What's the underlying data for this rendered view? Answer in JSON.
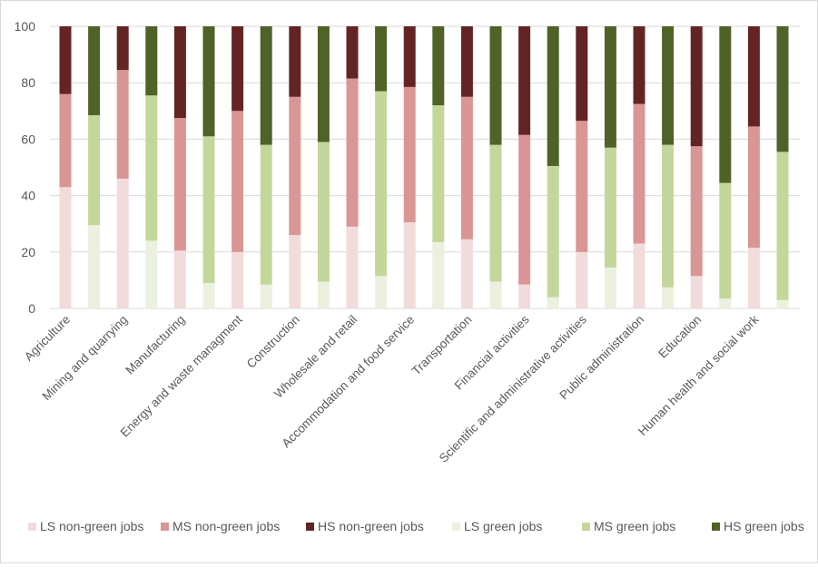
{
  "chart_data": {
    "type": "bar",
    "stacked": true,
    "title": "",
    "xlabel": "",
    "ylabel": "",
    "ylim": [
      0,
      100
    ],
    "yticks": [
      0,
      20,
      40,
      60,
      80,
      100
    ],
    "grid": true,
    "legend_position": "bottom",
    "categories": [
      "Agriculture",
      "Mining and quarrying",
      "Manufacturing",
      "Energy and waste managment",
      "Construction",
      "Wholesale and retail",
      "Accommodation and food service",
      "Transportation",
      "Financial activities",
      "Scientific and administrative activities",
      "Public administration",
      "Education",
      "Human health and social work"
    ],
    "groups": [
      {
        "bar": "non-green",
        "series": [
          {
            "name": "LS non-green jobs",
            "color": "#f2dcdb",
            "values": [
              43,
              46,
              20.5,
              20,
              26,
              29,
              30.5,
              24.5,
              8.5,
              20,
              23,
              11.5,
              21.5
            ]
          },
          {
            "name": "MS non-green jobs",
            "color": "#da9694",
            "values": [
              33,
              38.5,
              47,
              50,
              49,
              52.5,
              48,
              50.5,
              53,
              46.5,
              49.5,
              46,
              43
            ]
          },
          {
            "name": "HS non-green jobs",
            "color": "#632523",
            "values": [
              24,
              15.5,
              32.5,
              30,
              25,
              18.5,
              21.5,
              25,
              38.5,
              33.5,
              27.5,
              42.5,
              35.5
            ]
          }
        ]
      },
      {
        "bar": "green",
        "series": [
          {
            "name": "LS green jobs",
            "color": "#ebf1de",
            "values": [
              29.5,
              24,
              9,
              8.5,
              9.5,
              11.5,
              23.5,
              9.5,
              4,
              14.5,
              7.5,
              3.5,
              3
            ]
          },
          {
            "name": "MS green jobs",
            "color": "#c4d79b",
            "values": [
              39,
              51.5,
              52,
              49.5,
              49.5,
              65.5,
              48.5,
              48.5,
              46.5,
              42.5,
              50.5,
              41,
              52.5
            ]
          },
          {
            "name": "HS green jobs",
            "color": "#4f6228",
            "values": [
              31.5,
              24.5,
              39,
              42,
              41,
              23,
              28,
              42,
              49.5,
              43,
              42,
              55.5,
              44.5
            ]
          }
        ]
      }
    ],
    "legend": [
      "LS non-green jobs",
      "MS non-green jobs",
      "HS non-green jobs",
      "LS green jobs",
      "MS green jobs",
      "HS green jobs"
    ]
  }
}
